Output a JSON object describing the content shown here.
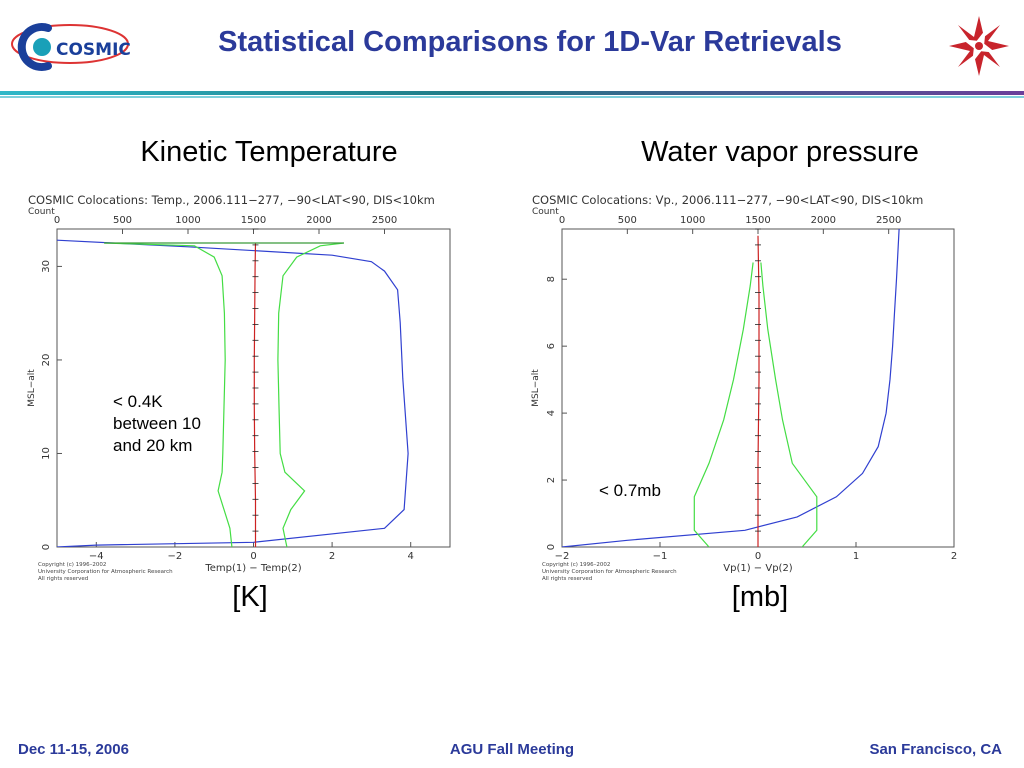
{
  "header": {
    "title": "Statistical Comparisons for 1D-Var Retrievals",
    "logo_text": "COSMIC",
    "title_color": "#2b3a9a"
  },
  "panels": [
    {
      "title": "Kinetic Temperature",
      "unit": "[K]",
      "annotation": "< 0.4K\nbetween 10\nand 20 km"
    },
    {
      "title": "Water vapor pressure",
      "unit": "[mb]",
      "annotation": "< 0.7mb"
    }
  ],
  "footer": {
    "left": "Dec 11-15, 2006",
    "center": "AGU Fall Meeting",
    "right": "San Francisco, CA"
  },
  "chart_data": [
    {
      "type": "line",
      "title": "COSMIC Colocations: Temp., 2006.111−277, −90<LAT<90, DIS<10km",
      "top_label": "Count",
      "xlabel": "Temp(1) − Temp(2)",
      "ylabel": "MSL−alt",
      "xlim": [
        -5,
        5
      ],
      "ylim": [
        0,
        34
      ],
      "top_xlim": [
        0,
        3000
      ],
      "x_ticks": [
        "−4",
        "−2",
        "0",
        "2",
        "4"
      ],
      "y_ticks": [
        "0",
        "10",
        "20",
        "30"
      ],
      "top_ticks": [
        "0",
        "500",
        "1000",
        "1500",
        "2000",
        "2500"
      ],
      "copyright": [
        "Copyright (c) 1996–2002",
        "University Corporation for Atmospheric Research",
        "All rights reserved"
      ],
      "series": [
        {
          "color": "#3040d0",
          "axis": "top",
          "x": [
            0,
            300,
            1500,
            2500,
            2650,
            2680,
            2640,
            2620,
            2600,
            2500,
            2400,
            2100,
            1000,
            0
          ],
          "y": [
            0,
            0.2,
            0.5,
            2.0,
            4.0,
            10,
            18,
            24,
            27.5,
            29.5,
            30.5,
            31.2,
            32.1,
            32.8
          ]
        },
        {
          "color": "#44dd44",
          "axis": "bottom",
          "x": [
            -0.55,
            -0.6,
            -0.75,
            -0.9,
            -0.8,
            -0.78,
            -0.75,
            -0.72,
            -0.74,
            -0.8,
            -1.0,
            -1.5,
            -3.8
          ],
          "y": [
            0,
            2,
            4,
            6,
            8,
            10,
            15,
            20,
            25,
            29,
            31,
            32.2,
            32.5
          ]
        },
        {
          "color": "#44dd44",
          "axis": "bottom",
          "x": [
            0.85,
            0.75,
            0.95,
            1.3,
            0.8,
            0.68,
            0.65,
            0.62,
            0.64,
            0.75,
            1.1,
            1.7,
            2.3
          ],
          "y": [
            0,
            2,
            4,
            6,
            8,
            10,
            15,
            20,
            25,
            29,
            31,
            32.2,
            32.5
          ]
        },
        {
          "color": "#cc2222",
          "axis": "bottom",
          "x": [
            0.05,
            0.05,
            0.03,
            0.02,
            0.02,
            0.03,
            0.04,
            0.05
          ],
          "y": [
            0,
            5,
            10,
            15,
            20,
            25,
            30,
            32.5
          ]
        },
        {
          "color": "#3a9a3a",
          "axis": "bottom",
          "x": [
            -3.8,
            2.3
          ],
          "y": [
            32.5,
            32.5
          ]
        }
      ]
    },
    {
      "type": "line",
      "title": "COSMIC Colocations: Vp., 2006.111−277, −90<LAT<90, DIS<10km",
      "top_label": "Count",
      "xlabel": "Vp(1) − Vp(2)",
      "ylabel": "MSL−alt",
      "xlim": [
        -2,
        2
      ],
      "ylim": [
        0,
        9.5
      ],
      "top_xlim": [
        0,
        3000
      ],
      "x_ticks": [
        "−2",
        "−1",
        "0",
        "1",
        "2"
      ],
      "y_ticks": [
        "0",
        "2",
        "4",
        "6",
        "8"
      ],
      "top_ticks": [
        "0",
        "500",
        "1000",
        "1500",
        "2000",
        "2500"
      ],
      "copyright": [
        "Copyright (c) 1996–2002",
        "University Corporation for Atmospheric Research",
        "All rights reserved"
      ],
      "series": [
        {
          "color": "#3040d0",
          "axis": "top",
          "x": [
            0,
            500,
            1400,
            1800,
            2100,
            2300,
            2420,
            2480,
            2510,
            2530,
            2545,
            2560,
            2580
          ],
          "y": [
            0,
            0.2,
            0.5,
            0.9,
            1.5,
            2.2,
            3.0,
            4.0,
            5.0,
            6.0,
            7.0,
            8.0,
            9.5
          ]
        },
        {
          "color": "#44dd44",
          "axis": "bottom",
          "x": [
            -0.5,
            -0.65,
            -0.65,
            -0.5,
            -0.35,
            -0.25,
            -0.15,
            -0.08,
            -0.05
          ],
          "y": [
            0,
            0.5,
            1.5,
            2.5,
            3.8,
            5.0,
            6.5,
            7.8,
            8.5
          ]
        },
        {
          "color": "#44dd44",
          "axis": "bottom",
          "x": [
            0.45,
            0.6,
            0.6,
            0.35,
            0.25,
            0.18,
            0.1,
            0.05,
            0.03
          ],
          "y": [
            0,
            0.5,
            1.5,
            2.5,
            3.8,
            5.0,
            6.5,
            7.8,
            8.5
          ]
        },
        {
          "color": "#cc2222",
          "axis": "bottom",
          "x": [
            0,
            0,
            0.01,
            0.01,
            0
          ],
          "y": [
            0,
            2.5,
            5,
            7.5,
            9.3
          ]
        }
      ]
    }
  ]
}
